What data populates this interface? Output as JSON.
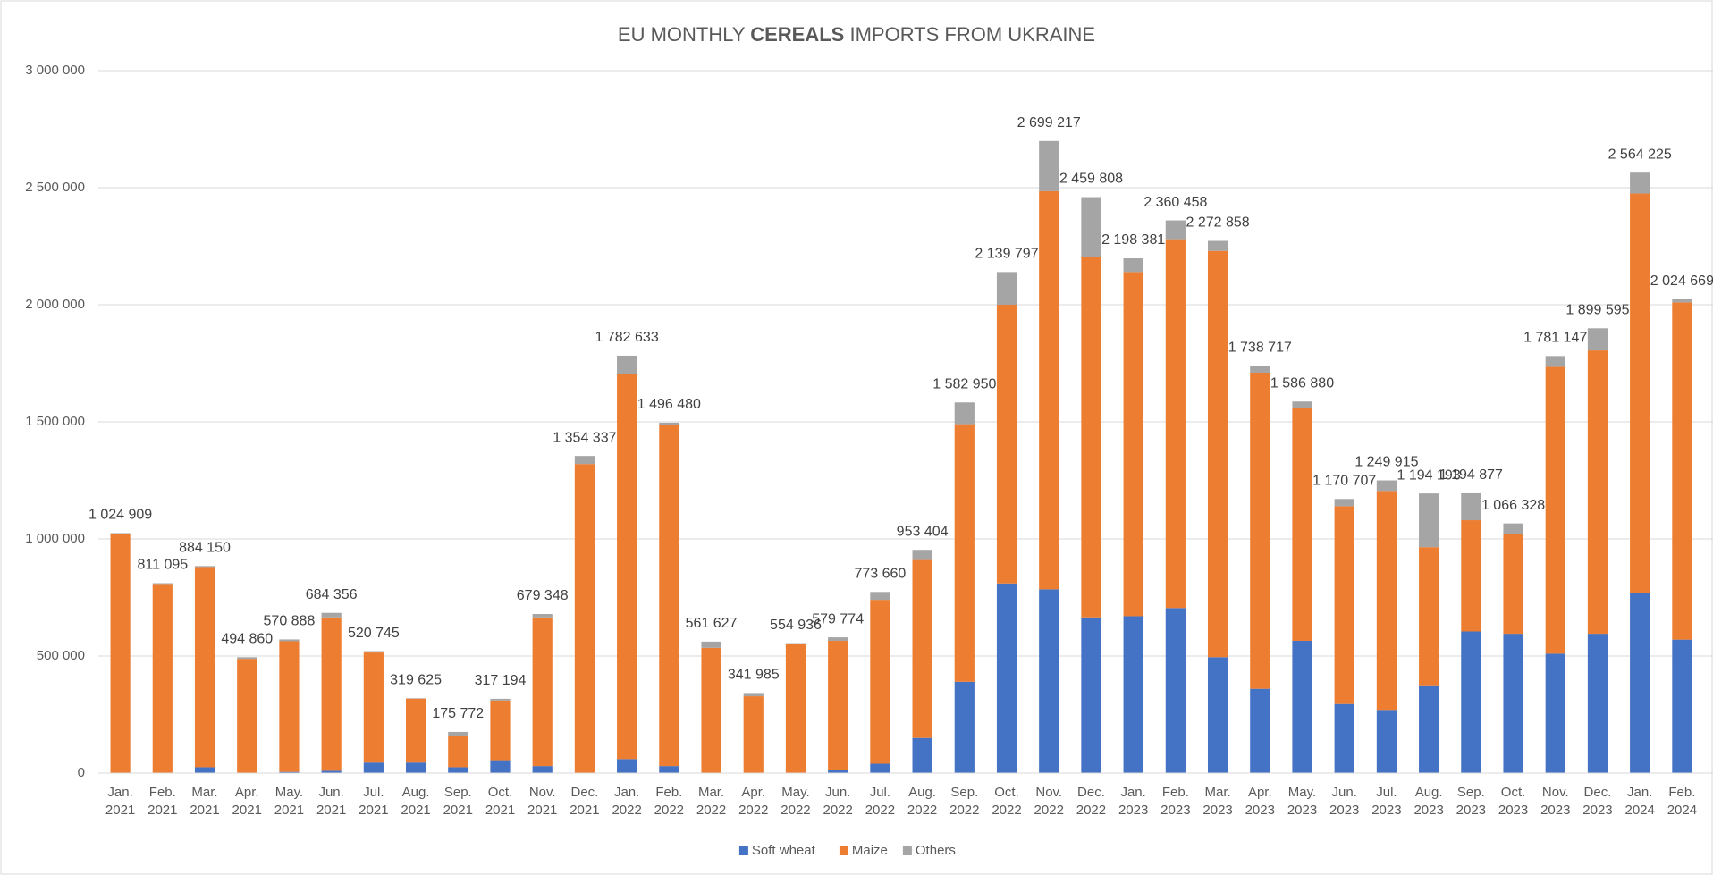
{
  "chart_data": {
    "type": "stacked-bar",
    "title": {
      "before": "EU MONTHLY ",
      "bold": "CEREALS",
      "after": " IMPORTS FROM UKRAINE"
    },
    "categories": [
      [
        "Jan.",
        "2021"
      ],
      [
        "Feb.",
        "2021"
      ],
      [
        "Mar.",
        "2021"
      ],
      [
        "Apr.",
        "2021"
      ],
      [
        "May.",
        "2021"
      ],
      [
        "Jun.",
        "2021"
      ],
      [
        "Jul.",
        "2021"
      ],
      [
        "Aug.",
        "2021"
      ],
      [
        "Sep.",
        "2021"
      ],
      [
        "Oct.",
        "2021"
      ],
      [
        "Nov.",
        "2021"
      ],
      [
        "Dec.",
        "2021"
      ],
      [
        "Jan.",
        "2022"
      ],
      [
        "Feb.",
        "2022"
      ],
      [
        "Mar.",
        "2022"
      ],
      [
        "Apr.",
        "2022"
      ],
      [
        "May.",
        "2022"
      ],
      [
        "Jun.",
        "2022"
      ],
      [
        "Jul.",
        "2022"
      ],
      [
        "Aug.",
        "2022"
      ],
      [
        "Sep.",
        "2022"
      ],
      [
        "Oct.",
        "2022"
      ],
      [
        "Nov.",
        "2022"
      ],
      [
        "Dec.",
        "2022"
      ],
      [
        "Jan.",
        "2023"
      ],
      [
        "Feb.",
        "2023"
      ],
      [
        "Mar.",
        "2023"
      ],
      [
        "Apr.",
        "2023"
      ],
      [
        "May.",
        "2023"
      ],
      [
        "Jun.",
        "2023"
      ],
      [
        "Jul.",
        "2023"
      ],
      [
        "Aug.",
        "2023"
      ],
      [
        "Sep.",
        "2023"
      ],
      [
        "Oct.",
        "2023"
      ],
      [
        "Nov.",
        "2023"
      ],
      [
        "Dec.",
        "2023"
      ],
      [
        "Jan.",
        "2024"
      ],
      [
        "Feb.",
        "2024"
      ]
    ],
    "series": [
      {
        "name": "Soft wheat",
        "color": "#4472c4",
        "values": [
          0,
          0,
          25000,
          0,
          5000,
          10000,
          45000,
          45000,
          25000,
          55000,
          30000,
          0,
          60000,
          30000,
          0,
          0,
          0,
          15000,
          40000,
          150000,
          390000,
          810000,
          785000,
          665000,
          670000,
          705000,
          495000,
          360000,
          565000,
          295000,
          270000,
          375000,
          605000,
          595000,
          510000,
          595000,
          770000,
          570000
        ]
      },
      {
        "name": "Maize",
        "color": "#ed7d31",
        "values": [
          1020000,
          808000,
          855000,
          488000,
          558000,
          655000,
          470000,
          273000,
          135000,
          255000,
          635000,
          1320000,
          1645000,
          1458000,
          535000,
          328000,
          550000,
          550000,
          700000,
          760000,
          1100000,
          1190000,
          1700000,
          1540000,
          1470000,
          1575000,
          1735000,
          1350000,
          995000,
          845000,
          935000,
          590000,
          475000,
          425000,
          1225000,
          1210000,
          1705000,
          1440000
        ]
      },
      {
        "name": "Others",
        "color": "#a5a5a5",
        "values": [
          4909,
          3095,
          4150,
          6860,
          7888,
          19356,
          5745,
          1625,
          15772,
          7194,
          14348,
          34337,
          77633,
          8480,
          26627,
          13985,
          4936,
          14774,
          33660,
          43404,
          92950,
          139797,
          214217,
          254808,
          58381,
          80458,
          42858,
          28717,
          26880,
          30707,
          44915,
          229193,
          114877,
          46328,
          46147,
          94595,
          89225,
          14669
        ]
      }
    ],
    "totals": {
      "values": [
        1024909,
        811095,
        884150,
        494860,
        570888,
        684356,
        520745,
        319625,
        175772,
        317194,
        679348,
        1354337,
        1782633,
        1496480,
        561627,
        341985,
        554936,
        579774,
        773660,
        953404,
        1582950,
        2139797,
        2699217,
        2459808,
        2198381,
        2360458,
        2272858,
        1738717,
        1586880,
        1170707,
        1249915,
        1194193,
        1194877,
        1066328,
        1781147,
        1899595,
        2564225,
        2024669
      ],
      "value_labels": [
        "1 024 909",
        "811 095",
        "884 150",
        "494 860",
        "570 888",
        "684 356",
        "520 745",
        "319 625",
        "175 772",
        "317 194",
        "679 348",
        "1 354 337",
        "1 782 633",
        "1 496 480",
        "561 627",
        "341 985",
        "554 936",
        "579 774",
        "773 660",
        "953 404",
        "1 582 950",
        "2 139 797",
        "2 699 217",
        "2 459 808",
        "2 198 381",
        "2 360 458",
        "2 272 858",
        "1 738 717",
        "1 586 880",
        "1 170 707",
        "1 249 915",
        "1 194 193",
        "1 194 877",
        "1 066 328",
        "1 781 147",
        "1 899 595",
        "2 564 225",
        "2 024 669"
      ]
    },
    "ylim": [
      0,
      3000000
    ],
    "yticks": [
      0,
      {
        "value": 500000,
        "label": "500 000"
      },
      {
        "value": 1000000,
        "label": "1 000 000"
      },
      {
        "value": 1500000,
        "label": "1 500 000"
      },
      {
        "value": 2000000,
        "label": "2 000 000"
      },
      {
        "value": 2500000,
        "label": "2 500 000"
      },
      {
        "value": 3000000,
        "label": "3 000 000"
      }
    ],
    "grid": true,
    "legend": "bottom"
  }
}
